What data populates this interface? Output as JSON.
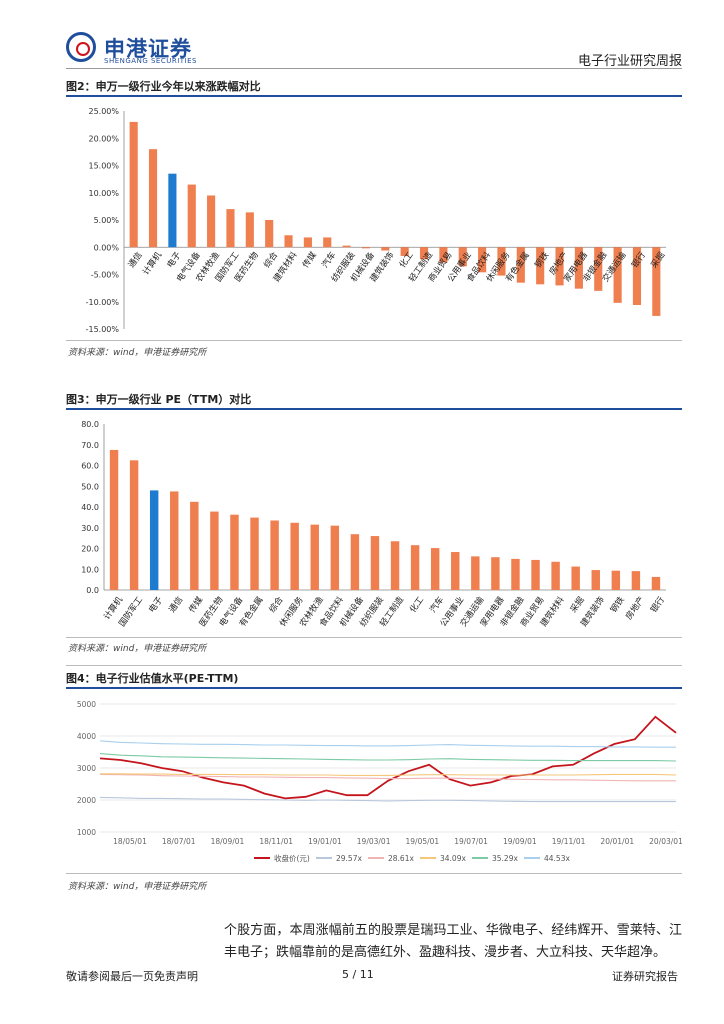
{
  "header": {
    "company_name": "申港证券",
    "company_name_en": "SHENGANG SECURITIES",
    "doc_title": "电子行业研究周报",
    "brand_color": "#1f4e9c",
    "accent_color": "#d0121b"
  },
  "figures": [
    {
      "title": "图2：申万一级行业今年以来涨跌幅对比",
      "source": "资料来源：wind，申港证券研究所"
    },
    {
      "title": "图3：申万一级行业 PE（TTM）对比",
      "source": "资料来源：wind，申港证券研究所"
    },
    {
      "title": "图4：电子行业估值水平(PE-TTM)",
      "source": "资料来源：wind，申港证券研究所"
    }
  ],
  "chart_data": [
    {
      "type": "bar",
      "title": "申万一级行业今年以来涨跌幅对比",
      "categories": [
        "通信",
        "计算机",
        "电子",
        "电气设备",
        "农林牧渔",
        "国防军工",
        "医药生物",
        "综合",
        "建筑材料",
        "传媒",
        "汽车",
        "纺织服装",
        "机械设备",
        "建筑装饰",
        "化工",
        "轻工制造",
        "商业贸易",
        "公用事业",
        "食品饮料",
        "休闲服务",
        "有色金属",
        "钢铁",
        "房地产",
        "家用电器",
        "非银金融",
        "交通运输",
        "银行",
        "采掘"
      ],
      "values": [
        23.0,
        18.0,
        13.5,
        11.5,
        9.5,
        7.0,
        6.4,
        5.0,
        2.2,
        1.8,
        1.8,
        0.3,
        -0.2,
        -0.6,
        -1.6,
        -2.2,
        -2.8,
        -3.5,
        -4.6,
        -5.2,
        -6.5,
        -6.8,
        -7.0,
        -7.6,
        -8.0,
        -10.2,
        -10.6,
        -12.6
      ],
      "highlight": "电子",
      "ylim": [
        -15,
        25
      ],
      "yticks": [
        "25.00%",
        "20.00%",
        "15.00%",
        "10.00%",
        "5.00%",
        "0.00%",
        "-5.00%",
        "-10.00%",
        "-15.00%"
      ],
      "colors": {
        "bar": "#f07f50",
        "highlight": "#1f7bd0"
      }
    },
    {
      "type": "bar",
      "title": "申万一级行业 PE（TTM）对比",
      "categories": [
        "计算机",
        "国防军工",
        "电子",
        "通信",
        "传媒",
        "医药生物",
        "电气设备",
        "有色金属",
        "综合",
        "休闲服务",
        "农林牧渔",
        "食品饮料",
        "机械设备",
        "纺织服装",
        "轻工制造",
        "化工",
        "汽车",
        "公用事业",
        "交通运输",
        "家用电器",
        "非银金融",
        "商业贸易",
        "建筑材料",
        "采掘",
        "建筑装饰",
        "钢铁",
        "房地产",
        "银行"
      ],
      "values": [
        67.5,
        62.5,
        48.0,
        47.5,
        42.5,
        37.8,
        36.3,
        34.9,
        33.5,
        32.4,
        31.5,
        31.0,
        26.9,
        26.0,
        23.5,
        21.6,
        20.2,
        18.3,
        16.2,
        15.8,
        15.0,
        14.5,
        13.6,
        11.3,
        9.6,
        9.3,
        9.1,
        6.3
      ],
      "highlight": "电子",
      "ylim": [
        0,
        80
      ],
      "yticks": [
        "80.0",
        "70.0",
        "60.0",
        "50.0",
        "40.0",
        "30.0",
        "20.0",
        "10.0",
        "0.0"
      ],
      "colors": {
        "bar": "#f07f50",
        "highlight": "#1f7bd0"
      }
    },
    {
      "type": "line",
      "title": "电子行业估值水平(PE-TTM)",
      "ylim": [
        1000,
        5000
      ],
      "yticks": [
        "5000",
        "4000",
        "3000",
        "2000",
        "1000"
      ],
      "xticks": [
        "18/05/01",
        "18/07/01",
        "18/09/01",
        "18/11/01",
        "19/01/01",
        "19/03/01",
        "19/05/01",
        "19/07/01",
        "19/09/01",
        "19/11/01",
        "20/01/01",
        "20/03/01"
      ],
      "series": [
        {
          "name": "收盘价(元)",
          "color": "#c4151c",
          "values": [
            3300,
            3250,
            3150,
            3000,
            2900,
            2700,
            2550,
            2450,
            2200,
            2050,
            2100,
            2300,
            2150,
            2150,
            2600,
            2900,
            3100,
            2650,
            2450,
            2550,
            2750,
            2800,
            3050,
            3100,
            3450,
            3750,
            3900,
            4600,
            4100
          ]
        },
        {
          "name": "29.57x",
          "color": "#b9c7dd",
          "values": [
            2080,
            2070,
            2050,
            2050,
            2040,
            2030,
            2030,
            2020,
            2010,
            2000,
            1990,
            2000,
            1990,
            1980,
            1970,
            1980,
            1990,
            1990,
            1980,
            1970,
            1960,
            1950,
            1950,
            1950,
            1950,
            1950,
            1950,
            1950,
            1950
          ]
        },
        {
          "name": "28.61x",
          "color": "#f2b3b3",
          "values": [
            2800,
            2790,
            2780,
            2760,
            2750,
            2740,
            2730,
            2720,
            2720,
            2710,
            2700,
            2700,
            2690,
            2680,
            2670,
            2670,
            2680,
            2680,
            2670,
            2660,
            2650,
            2640,
            2630,
            2630,
            2620,
            2610,
            2600,
            2600,
            2600
          ]
        },
        {
          "name": "34.09x",
          "color": "#f5c77a",
          "values": [
            2820,
            2820,
            2810,
            2810,
            2800,
            2800,
            2800,
            2790,
            2790,
            2780,
            2780,
            2780,
            2770,
            2770,
            2770,
            2780,
            2790,
            2790,
            2780,
            2780,
            2780,
            2780,
            2780,
            2780,
            2790,
            2800,
            2800,
            2800,
            2780
          ]
        },
        {
          "name": "35.29x",
          "color": "#7ccba5",
          "values": [
            3450,
            3400,
            3380,
            3350,
            3340,
            3330,
            3320,
            3310,
            3300,
            3290,
            3280,
            3270,
            3260,
            3250,
            3250,
            3260,
            3280,
            3290,
            3270,
            3260,
            3250,
            3240,
            3240,
            3230,
            3230,
            3230,
            3230,
            3230,
            3220
          ]
        },
        {
          "name": "44.53x",
          "color": "#a8cfee",
          "values": [
            3850,
            3800,
            3780,
            3760,
            3750,
            3740,
            3740,
            3730,
            3720,
            3720,
            3710,
            3700,
            3700,
            3690,
            3690,
            3700,
            3720,
            3730,
            3710,
            3700,
            3690,
            3680,
            3680,
            3670,
            3670,
            3660,
            3660,
            3650,
            3650
          ]
        }
      ]
    }
  ],
  "body_text": "个股方面，本周涨幅前五的股票是瑞玛工业、华微电子、经纬辉开、雪莱特、江丰电子；跌幅靠前的是高德红外、盈趣科技、漫步者、大立科技、天华超净。",
  "footer": {
    "left": "敬请参阅最后一页免责声明",
    "page": "5 / 11",
    "right": "证券研究报告"
  }
}
